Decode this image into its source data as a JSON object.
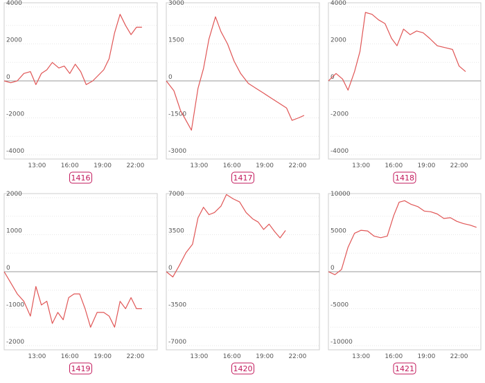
{
  "colors": {
    "line": "#e05555",
    "zero": "#999999",
    "frame": "#cccccc",
    "grid": "#e6e6e6",
    "badge": "#c2185b"
  },
  "chart_data": [
    {
      "type": "line",
      "label": "1416",
      "ylim": [
        -4000,
        4000
      ],
      "yticks": [
        "4000",
        "2000",
        "0",
        "-2000",
        "-4000"
      ],
      "ytick_values": [
        4000,
        2000,
        0,
        -2000,
        -4000
      ],
      "xlim": [
        10,
        24
      ],
      "xticks": [
        "13:00",
        "16:00",
        "19:00",
        "22:00"
      ],
      "xtick_values": [
        13,
        16,
        19,
        22
      ],
      "x": [
        10.0,
        10.6,
        11.2,
        11.8,
        12.4,
        12.9,
        13.4,
        13.9,
        14.4,
        15.0,
        15.5,
        16.0,
        16.5,
        17.0,
        17.5,
        18.1,
        18.6,
        19.1,
        19.6,
        20.1,
        20.6,
        21.1,
        21.6,
        22.1,
        22.6
      ],
      "y": [
        0,
        -100,
        0,
        400,
        500,
        -200,
        400,
        600,
        1000,
        700,
        800,
        400,
        900,
        500,
        -200,
        0,
        300,
        600,
        1200,
        2600,
        3600,
        3000,
        2500,
        2900,
        2900
      ]
    },
    {
      "type": "line",
      "label": "1417",
      "ylim": [
        -3000,
        3000
      ],
      "yticks": [
        "3000",
        "1500",
        "0",
        "-1500",
        "-3000"
      ],
      "ytick_values": [
        3000,
        1500,
        0,
        -1500,
        -3000
      ],
      "xlim": [
        10,
        24
      ],
      "xticks": [
        "13:00",
        "16:00",
        "19:00",
        "22:00"
      ],
      "xtick_values": [
        13,
        16,
        19,
        22
      ],
      "x": [
        10.0,
        10.7,
        11.3,
        11.8,
        12.3,
        12.9,
        13.4,
        13.9,
        14.5,
        15.0,
        15.6,
        16.2,
        16.8,
        17.5,
        18.2,
        18.9,
        19.6,
        20.3,
        21.0,
        21.5,
        22.1,
        22.6
      ],
      "y": [
        0,
        -400,
        -1200,
        -1600,
        -2000,
        -300,
        500,
        1700,
        2600,
        2000,
        1500,
        800,
        300,
        -100,
        -300,
        -500,
        -700,
        -900,
        -1100,
        -1600,
        -1500,
        -1400
      ]
    },
    {
      "type": "line",
      "label": "1418",
      "ylim": [
        -4000,
        4000
      ],
      "yticks": [
        "4000",
        "2000",
        "0",
        "-2000",
        "-4000"
      ],
      "ytick_values": [
        4000,
        2000,
        0,
        -2000,
        -4000
      ],
      "xlim": [
        10,
        24
      ],
      "xticks": [
        "13:00",
        "16:00",
        "19:00",
        "22:00"
      ],
      "xtick_values": [
        13,
        16,
        19,
        22
      ],
      "x": [
        10.0,
        10.7,
        11.3,
        11.8,
        12.4,
        12.9,
        13.4,
        14.0,
        14.6,
        15.2,
        15.8,
        16.3,
        16.9,
        17.5,
        18.1,
        18.7,
        19.3,
        20.0,
        20.7,
        21.4,
        22.0,
        22.6
      ],
      "y": [
        0,
        400,
        100,
        -500,
        500,
        1600,
        3700,
        3600,
        3300,
        3100,
        2300,
        1900,
        2800,
        2500,
        2700,
        2600,
        2300,
        1900,
        1800,
        1700,
        800,
        500
      ]
    },
    {
      "type": "line",
      "label": "1419",
      "ylim": [
        -2000,
        2000
      ],
      "yticks": [
        "2000",
        "1000",
        "0",
        "-1000",
        "-2000"
      ],
      "ytick_values": [
        2000,
        1000,
        0,
        -1000,
        -2000
      ],
      "xlim": [
        10,
        24
      ],
      "xticks": [
        "13:00",
        "16:00",
        "19:00",
        "22:00"
      ],
      "xtick_values": [
        13,
        16,
        19,
        22
      ],
      "x": [
        10.0,
        10.6,
        11.2,
        11.8,
        12.4,
        12.9,
        13.4,
        13.9,
        14.4,
        14.9,
        15.4,
        15.9,
        16.4,
        16.9,
        17.4,
        17.9,
        18.5,
        19.1,
        19.6,
        20.1,
        20.6,
        21.1,
        21.6,
        22.1,
        22.6
      ],
      "y": [
        0,
        -300,
        -600,
        -800,
        -1200,
        -400,
        -900,
        -800,
        -1400,
        -1100,
        -1300,
        -700,
        -600,
        -600,
        -1000,
        -1500,
        -1100,
        -1100,
        -1200,
        -1500,
        -800,
        -1000,
        -700,
        -1000,
        -1000
      ]
    },
    {
      "type": "line",
      "label": "1420",
      "ylim": [
        -7000,
        7000
      ],
      "yticks": [
        "7000",
        "3500",
        "0",
        "-3500",
        "-7000"
      ],
      "ytick_values": [
        7000,
        3500,
        0,
        -3500,
        -7000
      ],
      "xlim": [
        10,
        24
      ],
      "xticks": [
        "13:00",
        "16:00",
        "19:00",
        "22:00"
      ],
      "xtick_values": [
        13,
        16,
        19,
        22
      ],
      "x": [
        10.0,
        10.6,
        11.2,
        11.8,
        12.4,
        12.9,
        13.4,
        13.9,
        14.4,
        15.0,
        15.5,
        16.1,
        16.7,
        17.3,
        17.9,
        18.4,
        18.9,
        19.4,
        19.9,
        20.4,
        20.9
      ],
      "y": [
        0,
        -500,
        600,
        1800,
        2600,
        5100,
        6100,
        5400,
        5600,
        6200,
        7300,
        6900,
        6600,
        5600,
        5000,
        4700,
        4000,
        4500,
        3800,
        3200,
        3900
      ]
    },
    {
      "type": "line",
      "label": "1421",
      "ylim": [
        -10000,
        10000
      ],
      "yticks": [
        "10000",
        "5000",
        "0",
        "-5000",
        "-10000"
      ],
      "ytick_values": [
        10000,
        5000,
        0,
        -5000,
        -10000
      ],
      "xlim": [
        10,
        24
      ],
      "xticks": [
        "13:00",
        "16:00",
        "19:00",
        "22:00"
      ],
      "xtick_values": [
        13,
        16,
        19,
        22
      ],
      "x": [
        10.0,
        10.6,
        11.2,
        11.8,
        12.4,
        13.0,
        13.6,
        14.2,
        14.8,
        15.4,
        16.0,
        16.5,
        17.0,
        17.6,
        18.2,
        18.8,
        19.4,
        20.0,
        20.6,
        21.2,
        21.8,
        22.4,
        23.0,
        23.6
      ],
      "y": [
        0,
        -400,
        300,
        3300,
        5200,
        5600,
        5500,
        4800,
        4600,
        4800,
        7600,
        9400,
        9600,
        9100,
        8800,
        8200,
        8100,
        7800,
        7200,
        7300,
        6800,
        6500,
        6300,
        6000
      ]
    }
  ]
}
